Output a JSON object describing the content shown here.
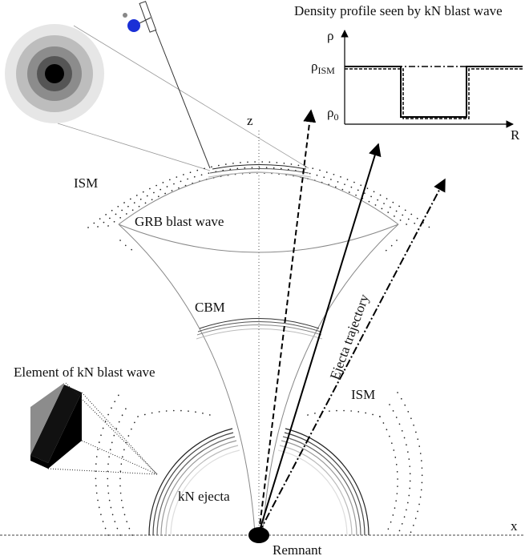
{
  "inset": {
    "title": "Density profile seen by kN blast wave",
    "y_axis": "ρ",
    "x_axis": "R",
    "levels": [
      {
        "symbol": "ρ",
        "subscript": "ISM"
      },
      {
        "symbol": "ρ",
        "subscript": "0"
      }
    ]
  },
  "labels": {
    "z_axis": "z",
    "x_axis": "x",
    "ism_upper": "ISM",
    "ism_lower": "ISM",
    "grb": "GRB blast wave",
    "cbm": "CBM",
    "trajectory": "Ejecta trajectory",
    "element": "Element of kN blast wave",
    "ejecta": "kN ejecta",
    "remnant": "Remnant"
  }
}
